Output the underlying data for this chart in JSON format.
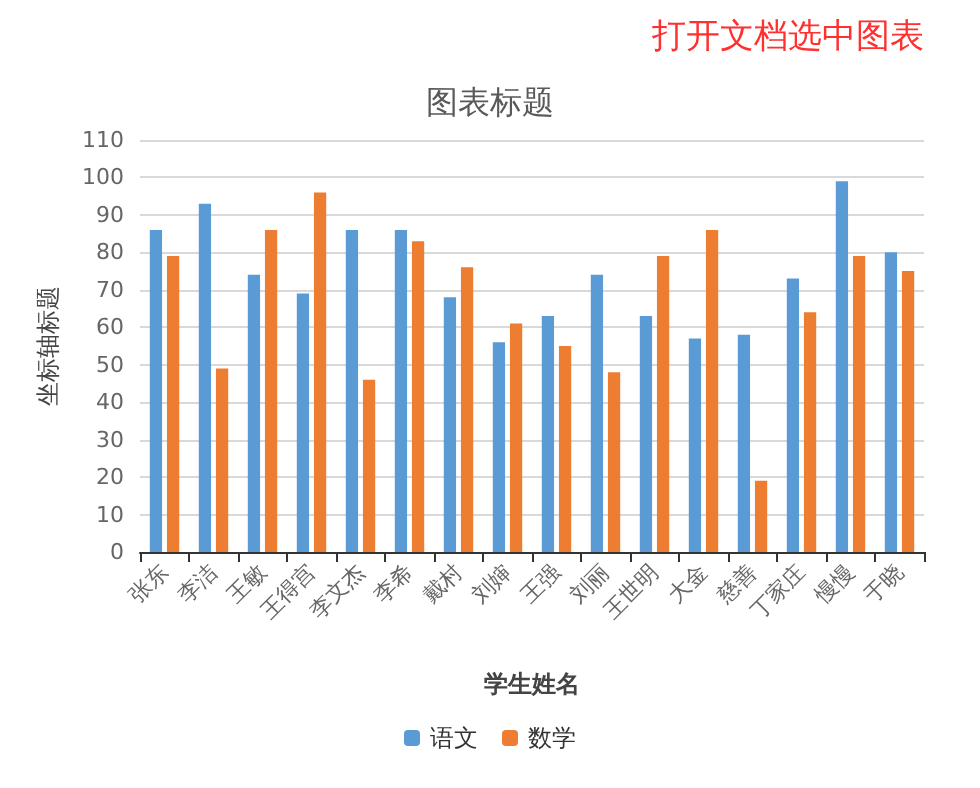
{
  "chart_data": {
    "type": "bar",
    "title": "图表标题",
    "xlabel": "学生姓名",
    "ylabel": "坐标轴标题",
    "annotations": [
      "打开文档选中图表"
    ],
    "categories": [
      "张东",
      "李洁",
      "王敏",
      "王得宫",
      "李文杰",
      "李希",
      "戴村",
      "刘婶",
      "王强",
      "刘丽",
      "王世明",
      "大金",
      "慈善",
      "丁家庄",
      "慢慢",
      "于晓"
    ],
    "series": [
      {
        "name": "语文",
        "color": "#5b9bd5",
        "values": [
          86,
          93,
          74,
          69,
          86,
          86,
          68,
          56,
          63,
          74,
          63,
          57,
          58,
          73,
          99,
          80
        ]
      },
      {
        "name": "数学",
        "color": "#ed7d31",
        "values": [
          79,
          49,
          86,
          96,
          46,
          83,
          76,
          61,
          55,
          48,
          79,
          86,
          19,
          64,
          79,
          75
        ]
      }
    ],
    "ylim": [
      0,
      110
    ],
    "yticks": [
      0,
      10,
      20,
      30,
      40,
      50,
      60,
      70,
      80,
      90,
      100,
      110
    ],
    "grid": "y",
    "legend": "bottom"
  }
}
